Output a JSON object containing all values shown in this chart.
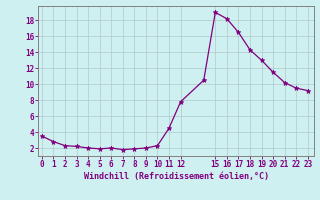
{
  "x": [
    0,
    1,
    2,
    3,
    4,
    5,
    6,
    7,
    8,
    9,
    10,
    11,
    12,
    14,
    15,
    16,
    17,
    18,
    19,
    20,
    21,
    22,
    23
  ],
  "y": [
    3.5,
    2.8,
    2.3,
    2.2,
    2.0,
    1.9,
    2.0,
    1.8,
    1.9,
    2.0,
    2.3,
    4.5,
    7.8,
    10.5,
    19.0,
    18.2,
    16.5,
    14.3,
    13.0,
    11.5,
    10.2,
    9.5,
    9.2
  ],
  "ytick_positions": [
    2,
    4,
    6,
    8,
    10,
    12,
    14,
    16,
    18
  ],
  "ytick_labels": [
    "2",
    "4",
    "6",
    "8",
    "10",
    "12",
    "14",
    "16",
    "18"
  ],
  "xlabel": "Windchill (Refroidissement éolien,°C)",
  "line_color": "#800080",
  "marker": "*",
  "marker_size": 3.5,
  "background_color": "#cff0f0",
  "grid_color": "#b0c8c8",
  "xlim": [
    -0.3,
    23.5
  ],
  "ylim": [
    1.0,
    19.8
  ],
  "tick_color": "#800080",
  "label_color": "#800080",
  "spine_color": "#808080",
  "tick_fontsize": 5.5,
  "xlabel_fontsize": 6.0,
  "linewidth": 0.9
}
